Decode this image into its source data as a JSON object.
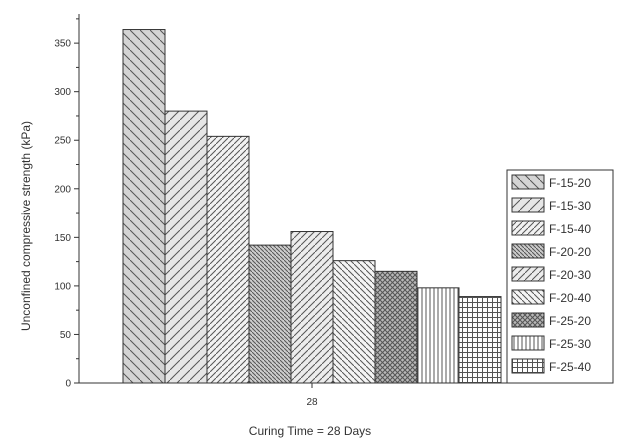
{
  "chart_data": {
    "type": "bar",
    "title": "",
    "categories": [
      "28"
    ],
    "xlabel": "Curing Time = 28 Days",
    "ylabel": "Unconfined compressive strength (kPa)",
    "ylim": [
      0,
      380
    ],
    "yticks": [
      0,
      50,
      100,
      150,
      200,
      250,
      300,
      350
    ],
    "grid": false,
    "legend_position": "right",
    "series": [
      {
        "name": "F-15-20",
        "values": [
          364
        ],
        "pattern": "diag-back-wide"
      },
      {
        "name": "F-15-30",
        "values": [
          280
        ],
        "pattern": "diag-fwd-wide"
      },
      {
        "name": "F-15-40",
        "values": [
          254
        ],
        "pattern": "diag-fwd"
      },
      {
        "name": "F-20-20",
        "values": [
          142
        ],
        "pattern": "diag-back-dense"
      },
      {
        "name": "F-20-30",
        "values": [
          156
        ],
        "pattern": "diag-fwd-medium"
      },
      {
        "name": "F-20-40",
        "values": [
          126
        ],
        "pattern": "diag-back"
      },
      {
        "name": "F-25-20",
        "values": [
          115
        ],
        "pattern": "crosshatch-diag"
      },
      {
        "name": "F-25-30",
        "values": [
          98
        ],
        "pattern": "vertical"
      },
      {
        "name": "F-25-40",
        "values": [
          89
        ],
        "pattern": "grid"
      }
    ]
  }
}
